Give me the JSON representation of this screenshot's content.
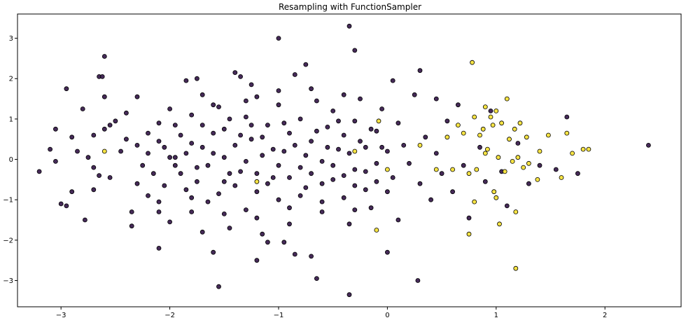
{
  "chart_data": {
    "type": "scatter",
    "title": "Resampling with FunctionSampler",
    "xlabel": "",
    "ylabel": "",
    "xlim": [
      -3.4,
      2.7
    ],
    "ylim": [
      -3.65,
      3.6
    ],
    "x_ticks": [
      -3,
      -2,
      -1,
      0,
      1,
      2
    ],
    "y_ticks": [
      -3,
      -2,
      -1,
      0,
      1,
      2,
      3
    ],
    "x_tick_labels": [
      "−3",
      "−2",
      "−1",
      "0",
      "1",
      "2"
    ],
    "y_tick_labels": [
      "−3",
      "−2",
      "−1",
      "0",
      "1",
      "2",
      "3"
    ],
    "grid": false,
    "series": [
      {
        "color": "#3b1f4f",
        "points": [
          [
            -3.2,
            -0.3
          ],
          [
            -3.1,
            0.25
          ],
          [
            -3.05,
            0.75
          ],
          [
            -3.0,
            -1.1
          ],
          [
            -2.95,
            -1.15
          ],
          [
            -2.9,
            -0.8
          ],
          [
            -2.9,
            0.55
          ],
          [
            -2.85,
            0.2
          ],
          [
            -3.05,
            -0.05
          ],
          [
            -2.95,
            1.75
          ],
          [
            -2.8,
            1.25
          ],
          [
            -2.75,
            0.05
          ],
          [
            -2.7,
            -0.75
          ],
          [
            -2.65,
            2.05
          ],
          [
            -2.62,
            2.05
          ],
          [
            -2.6,
            1.55
          ],
          [
            -2.78,
            -1.5
          ],
          [
            -2.7,
            0.6
          ],
          [
            -2.55,
            0.85
          ],
          [
            -2.55,
            -0.45
          ],
          [
            -2.5,
            0.95
          ],
          [
            -2.45,
            0.2
          ],
          [
            -2.4,
            0.5
          ],
          [
            -2.35,
            -1.3
          ],
          [
            -2.3,
            -0.6
          ],
          [
            -2.6,
            0.75
          ],
          [
            -2.65,
            -0.4
          ],
          [
            -2.7,
            -0.2
          ],
          [
            -2.4,
            1.15
          ],
          [
            -2.35,
            -1.65
          ],
          [
            -2.3,
            1.55
          ],
          [
            -2.2,
            0.65
          ],
          [
            -2.2,
            -0.9
          ],
          [
            -2.1,
            -1.05
          ],
          [
            -2.1,
            0.9
          ],
          [
            -2.05,
            0.3
          ],
          [
            -2.0,
            -1.55
          ],
          [
            -2.0,
            1.25
          ],
          [
            -1.95,
            0.05
          ],
          [
            -1.9,
            0.6
          ],
          [
            -1.85,
            -0.75
          ],
          [
            -1.85,
            1.95
          ],
          [
            -1.8,
            -1.3
          ],
          [
            -1.8,
            0.4
          ],
          [
            -1.75,
            -0.2
          ],
          [
            -1.7,
            1.6
          ],
          [
            -1.7,
            0.85
          ],
          [
            -1.65,
            -1.05
          ],
          [
            -1.6,
            0.15
          ],
          [
            -1.6,
            -2.3
          ],
          [
            -1.55,
            1.3
          ],
          [
            -1.5,
            -0.55
          ],
          [
            -1.5,
            0.75
          ],
          [
            -1.45,
            -1.7
          ],
          [
            -1.4,
            0.35
          ],
          [
            -1.4,
            2.15
          ],
          [
            -1.35,
            -0.3
          ],
          [
            -1.3,
            1.05
          ],
          [
            -1.3,
            -1.25
          ],
          [
            -1.25,
            0.5
          ],
          [
            -1.2,
            -0.8
          ],
          [
            -1.2,
            1.55
          ],
          [
            -1.15,
            0.1
          ],
          [
            -1.1,
            -2.05
          ],
          [
            -1.1,
            0.85
          ],
          [
            -1.05,
            -0.45
          ],
          [
            -1.0,
            1.35
          ],
          [
            -1.0,
            -1.0
          ],
          [
            -0.95,
            0.2
          ],
          [
            -0.9,
            -1.6
          ],
          [
            -0.9,
            0.65
          ],
          [
            -0.85,
            2.1
          ],
          [
            -0.8,
            -0.2
          ],
          [
            -0.8,
            1.0
          ],
          [
            -0.75,
            -0.7
          ],
          [
            -0.7,
            0.45
          ],
          [
            -0.7,
            -2.4
          ],
          [
            -0.65,
            1.45
          ],
          [
            -0.6,
            -0.05
          ],
          [
            -0.6,
            -1.3
          ],
          [
            -0.55,
            0.8
          ],
          [
            -0.5,
            -0.5
          ],
          [
            -0.5,
            1.2
          ],
          [
            -0.45,
            0.25
          ],
          [
            -0.4,
            -0.95
          ],
          [
            -0.4,
            0.6
          ],
          [
            -0.35,
            -1.6
          ],
          [
            -0.3,
            0.95
          ],
          [
            -0.3,
            -0.25
          ],
          [
            -0.25,
            1.5
          ],
          [
            -0.2,
            0.3
          ],
          [
            -0.2,
            -0.75
          ],
          [
            -0.15,
            -1.2
          ],
          [
            -0.1,
            0.7
          ],
          [
            -0.1,
            -0.1
          ],
          [
            -0.05,
            1.25
          ],
          [
            0.0,
            0.2
          ],
          [
            0.0,
            -0.8
          ],
          [
            0.05,
            -0.45
          ],
          [
            0.1,
            0.9
          ],
          [
            0.1,
            -1.5
          ],
          [
            0.15,
            0.35
          ],
          [
            0.2,
            -0.1
          ],
          [
            0.25,
            1.6
          ],
          [
            0.3,
            -0.6
          ],
          [
            0.3,
            2.2
          ],
          [
            0.35,
            0.55
          ],
          [
            0.4,
            -1.0
          ],
          [
            0.45,
            0.15
          ],
          [
            0.45,
            1.5
          ],
          [
            0.5,
            -0.35
          ],
          [
            0.55,
            0.95
          ],
          [
            0.6,
            -0.8
          ],
          [
            0.65,
            1.35
          ],
          [
            0.7,
            -0.15
          ],
          [
            0.75,
            -1.45
          ],
          [
            0.85,
            0.3
          ],
          [
            0.9,
            -0.55
          ],
          [
            0.95,
            1.2
          ],
          [
            1.05,
            -0.3
          ],
          [
            1.1,
            -1.15
          ],
          [
            1.2,
            0.4
          ],
          [
            1.3,
            -0.6
          ],
          [
            1.4,
            -0.15
          ],
          [
            1.55,
            -0.25
          ],
          [
            1.65,
            1.05
          ],
          [
            1.75,
            -0.35
          ],
          [
            2.4,
            0.35
          ],
          [
            -1.55,
            -3.15
          ],
          [
            -0.35,
            -3.35
          ],
          [
            -0.65,
            -2.95
          ],
          [
            0.0,
            -2.3
          ],
          [
            0.28,
            -3.0
          ],
          [
            -1.0,
            3.0
          ],
          [
            -0.35,
            3.3
          ],
          [
            -0.3,
            2.7
          ],
          [
            -2.6,
            2.55
          ],
          [
            -1.2,
            -2.5
          ],
          [
            -0.85,
            -2.35
          ],
          [
            -2.1,
            -2.2
          ],
          [
            -1.75,
            2.0
          ],
          [
            -1.35,
            2.05
          ],
          [
            -0.75,
            2.35
          ],
          [
            0.05,
            1.95
          ],
          [
            -1.95,
            0.85
          ],
          [
            -1.9,
            -0.35
          ],
          [
            -1.85,
            0.15
          ],
          [
            -1.8,
            1.1
          ],
          [
            -1.75,
            -0.55
          ],
          [
            -1.7,
            0.3
          ],
          [
            -1.65,
            -0.15
          ],
          [
            -1.6,
            0.65
          ],
          [
            -1.55,
            -0.85
          ],
          [
            -1.5,
            0.05
          ],
          [
            -1.45,
            1.0
          ],
          [
            -1.45,
            -0.35
          ],
          [
            -1.4,
            -0.65
          ],
          [
            -1.35,
            0.6
          ],
          [
            -1.3,
            -0.05
          ],
          [
            -1.25,
            0.85
          ],
          [
            -1.2,
            -0.35
          ],
          [
            -1.15,
            0.55
          ],
          [
            -1.1,
            -0.6
          ],
          [
            -1.05,
            0.25
          ],
          [
            -1.0,
            -0.15
          ],
          [
            -0.95,
            0.9
          ],
          [
            -0.9,
            -0.45
          ],
          [
            -0.85,
            0.35
          ],
          [
            -0.8,
            -0.9
          ],
          [
            -0.75,
            0.1
          ],
          [
            -0.7,
            -0.35
          ],
          [
            -0.65,
            0.7
          ],
          [
            -0.6,
            -0.6
          ],
          [
            -0.55,
            0.3
          ],
          [
            -0.5,
            -0.15
          ],
          [
            -0.45,
            0.95
          ],
          [
            -0.4,
            -0.4
          ],
          [
            -0.35,
            0.15
          ],
          [
            -0.3,
            -0.65
          ],
          [
            -0.25,
            0.45
          ],
          [
            -0.2,
            -0.3
          ],
          [
            -0.15,
            0.75
          ],
          [
            -0.1,
            -0.55
          ],
          [
            -0.05,
            0.3
          ],
          [
            -2.2,
            0.15
          ],
          [
            -2.15,
            -0.35
          ],
          [
            -2.1,
            0.45
          ],
          [
            -2.05,
            -0.65
          ],
          [
            -2.0,
            0.05
          ],
          [
            -1.95,
            -0.15
          ],
          [
            -2.25,
            -0.15
          ],
          [
            -2.3,
            0.35
          ],
          [
            -1.6,
            1.35
          ],
          [
            -1.3,
            1.45
          ],
          [
            -1.0,
            1.7
          ],
          [
            -0.7,
            1.75
          ],
          [
            -0.4,
            1.6
          ],
          [
            -1.5,
            -1.35
          ],
          [
            -1.2,
            -1.45
          ],
          [
            -0.9,
            -1.2
          ],
          [
            -0.6,
            -1.05
          ],
          [
            -0.3,
            -1.25
          ],
          [
            -1.8,
            -0.95
          ],
          [
            -2.1,
            -1.3
          ],
          [
            -1.15,
            -1.85
          ],
          [
            -0.95,
            -2.05
          ],
          [
            -1.7,
            -1.8
          ],
          [
            -1.25,
            1.85
          ]
        ]
      },
      {
        "color": "#f5e23a",
        "points": [
          [
            -2.6,
            0.2
          ],
          [
            -1.2,
            -0.55
          ],
          [
            -0.3,
            0.2
          ],
          [
            -0.1,
            -1.75
          ],
          [
            -0.08,
            0.95
          ],
          [
            0.0,
            -0.25
          ],
          [
            0.3,
            0.35
          ],
          [
            0.45,
            -0.25
          ],
          [
            0.55,
            0.55
          ],
          [
            0.6,
            -0.25
          ],
          [
            0.65,
            0.85
          ],
          [
            0.7,
            0.65
          ],
          [
            0.75,
            -0.35
          ],
          [
            0.75,
            -1.85
          ],
          [
            0.78,
            2.4
          ],
          [
            0.8,
            1.05
          ],
          [
            0.8,
            -1.05
          ],
          [
            0.82,
            -0.25
          ],
          [
            0.85,
            0.6
          ],
          [
            0.88,
            0.75
          ],
          [
            0.9,
            1.3
          ],
          [
            0.9,
            0.15
          ],
          [
            0.92,
            0.25
          ],
          [
            0.95,
            1.05
          ],
          [
            0.97,
            0.85
          ],
          [
            0.98,
            -0.8
          ],
          [
            1.0,
            1.2
          ],
          [
            1.0,
            -0.95
          ],
          [
            1.02,
            0.05
          ],
          [
            1.03,
            -1.6
          ],
          [
            1.05,
            0.9
          ],
          [
            1.08,
            -0.3
          ],
          [
            1.1,
            1.5
          ],
          [
            1.12,
            0.5
          ],
          [
            1.15,
            -0.05
          ],
          [
            1.17,
            0.75
          ],
          [
            1.2,
            0.05
          ],
          [
            1.18,
            -1.3
          ],
          [
            1.18,
            -2.7
          ],
          [
            1.22,
            0.9
          ],
          [
            1.25,
            -0.2
          ],
          [
            1.28,
            0.55
          ],
          [
            1.3,
            -0.1
          ],
          [
            1.38,
            -0.5
          ],
          [
            1.4,
            0.2
          ],
          [
            1.48,
            0.6
          ],
          [
            1.6,
            -0.45
          ],
          [
            1.65,
            0.65
          ],
          [
            1.7,
            0.15
          ],
          [
            1.8,
            0.25
          ],
          [
            1.85,
            0.25
          ]
        ]
      }
    ]
  }
}
